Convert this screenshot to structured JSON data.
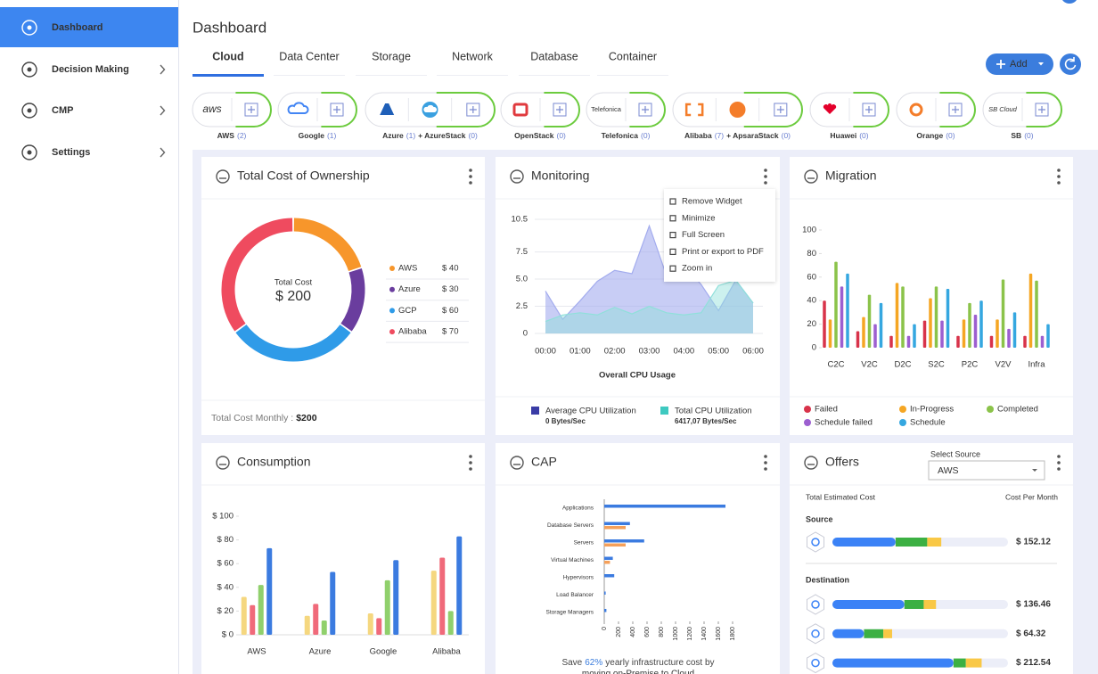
{
  "sidebar": [
    "Dashboard",
    "Decision Making",
    "CMP",
    "Settings"
  ],
  "header": {
    "title": "Dashboard",
    "tabs": [
      "Cloud",
      "Data Center",
      "Storage",
      "Network",
      "Database",
      "Container"
    ],
    "add": "Add"
  },
  "providers": [
    {
      "logo": "aws",
      "name": "AWS",
      "count": "(2)"
    },
    {
      "name": "Google",
      "count": "(1)"
    },
    {
      "name": "Azure",
      "count": "(1)",
      "sub": "+ AzureStack",
      "sub_count": "(0)"
    },
    {
      "name": "OpenStack",
      "count": "(0)"
    },
    {
      "logo": "Telefonica",
      "name": "Telefonica",
      "count": "(0)"
    },
    {
      "name": "Alibaba",
      "count": "(7)",
      "sub": "+ ApsaraStack",
      "sub_count": "(0)"
    },
    {
      "name": "Huawei",
      "count": "(0)"
    },
    {
      "name": "Orange",
      "count": "(0)"
    },
    {
      "logo": "SB Cloud",
      "name": "SB",
      "count": "(0)"
    }
  ],
  "chart_data": [
    {
      "type": "donut",
      "title": "Total Cost of Ownership",
      "center_label": "Total Cost",
      "total_label": "$ 200",
      "categories": [
        "AWS",
        "Azure",
        "GCP",
        "Alibaba"
      ],
      "values": [
        40,
        30,
        60,
        70
      ],
      "value_labels": [
        "$ 40",
        "$ 30",
        "$ 60",
        "$ 70"
      ],
      "colors": [
        "#f7962b",
        "#6a3d9e",
        "#2f9be8",
        "#ef4b5f"
      ],
      "footer_label": "Total Cost Monthly :",
      "footer_value": "$200"
    },
    {
      "type": "area",
      "title": "Monitoring",
      "categories": [
        "00:00",
        null,
        "01:00",
        null,
        "02:00",
        null,
        "03:00",
        null,
        "04:00",
        null,
        "05:00",
        null,
        "06:00"
      ],
      "series": [
        {
          "name": "Average CPU Utilization",
          "rate": "0 Bytes/Sec",
          "color": "#3a3ca6",
          "fill": "#a3acee",
          "values": [
            3.9,
            1.3,
            3.0,
            4.8,
            5.8,
            5.5,
            9.9,
            5.3,
            6.3,
            4.5,
            2.1,
            4.9,
            2.8
          ]
        },
        {
          "name": "Total CPU Utilization",
          "rate": "6417,07 Bytes/Sec",
          "color": "#3ec9c0",
          "fill": "#8fe0da",
          "values": [
            1.1,
            1.7,
            1.9,
            1.7,
            2.4,
            1.8,
            2.5,
            1.9,
            1.7,
            1.9,
            4.4,
            4.9,
            2.8
          ]
        }
      ],
      "ylim": [
        0,
        10.5
      ],
      "yticks": [
        0,
        2.5,
        {
          "value": 5,
          "label": "5.0"
        },
        7.5,
        10.5
      ],
      "xlabel": "Overall CPU Usage",
      "menu": [
        "Remove Widget",
        "Minimize",
        "Full Screen",
        "Print or export to PDF",
        "Zoom in"
      ]
    },
    {
      "type": "grouped-bar",
      "title": "Migration",
      "categories": [
        "C2C",
        "V2C",
        "D2C",
        "S2C",
        "P2C",
        "V2V",
        "Infra"
      ],
      "series": [
        {
          "name": "Failed",
          "color": "#d8334a",
          "values": [
            40,
            14,
            10,
            23,
            10,
            10,
            10
          ]
        },
        {
          "name": "In-Progress",
          "color": "#f5a623",
          "values": [
            24,
            26,
            55,
            42,
            24,
            24,
            63
          ]
        },
        {
          "name": "Completed",
          "color": "#8bc34a",
          "values": [
            73,
            45,
            52,
            52,
            38,
            58,
            57
          ]
        },
        {
          "name": "Schedule failed",
          "color": "#9c5fd0",
          "values": [
            52,
            20,
            10,
            23,
            28,
            16,
            10
          ]
        },
        {
          "name": "Schedule",
          "color": "#35a7e0",
          "values": [
            63,
            38,
            20,
            50,
            40,
            30,
            20
          ]
        }
      ],
      "ylim": [
        0,
        100
      ],
      "yticks": [
        0,
        20,
        40,
        60,
        80,
        100
      ],
      "legend": "bottom"
    },
    {
      "type": "grouped-bar",
      "title": "Consumption",
      "categories": [
        "AWS",
        "Azure",
        "Google",
        "Alibaba"
      ],
      "series": [
        {
          "color": "#f5d77f",
          "values": [
            32,
            16,
            18,
            54
          ]
        },
        {
          "color": "#f06a7a",
          "values": [
            25,
            26,
            14,
            65
          ]
        },
        {
          "color": "#90d06c",
          "values": [
            42,
            12,
            46,
            20
          ]
        },
        {
          "color": "#3b7be0",
          "values": [
            73,
            53,
            63,
            83
          ]
        }
      ],
      "ylim": [
        0,
        100
      ],
      "yticks": [
        {
          "value": 0,
          "label": "$ 0"
        },
        {
          "value": 20,
          "label": "$ 20"
        },
        {
          "value": 40,
          "label": "$ 40"
        },
        {
          "value": 60,
          "label": "$ 60"
        },
        {
          "value": 80,
          "label": "$ 80"
        },
        {
          "value": 100,
          "label": "$ 100"
        }
      ]
    },
    {
      "type": "hbar",
      "title": "CAP",
      "categories": [
        "Applications",
        "Database Servers",
        "Servers",
        "Virtual Machines",
        "Hypervisors",
        "Load Balancer",
        "Storage Managers"
      ],
      "series": [
        {
          "color": "#3b7be0",
          "values": [
            1700,
            360,
            560,
            120,
            140,
            20,
            30
          ]
        },
        {
          "color": "#f5a05a",
          "values": [
            0,
            300,
            300,
            80,
            0,
            0,
            0
          ]
        }
      ],
      "xlim": [
        0,
        1800
      ],
      "xticks": [
        0,
        200,
        400,
        600,
        800,
        1000,
        1200,
        1400,
        1600,
        1800
      ],
      "footer": {
        "before": "Save",
        "highlight": "62%",
        "after": "yearly infrastructure cost by",
        "line2": "moving on-Premise to Cloud"
      }
    }
  ],
  "offers": {
    "title": "Offers",
    "select_label": "Select Source",
    "selected": "AWS",
    "col_left": "Total Estimated Cost",
    "col_right": "Cost Per Month",
    "source_label": "Source",
    "destination_label": "Destination",
    "segment_colors": [
      "#3b82f6",
      "#3cb043",
      "#f9c846"
    ],
    "source": [
      {
        "segments": [
          36,
          18,
          8
        ],
        "cost": "$ 152.12"
      }
    ],
    "destination": [
      {
        "segments": [
          41,
          11,
          7
        ],
        "cost": "$ 136.46"
      },
      {
        "segments": [
          18,
          11,
          5
        ],
        "cost": "$ 64.32"
      },
      {
        "segments": [
          69,
          7,
          9
        ],
        "cost": "$ 212.54"
      }
    ]
  }
}
